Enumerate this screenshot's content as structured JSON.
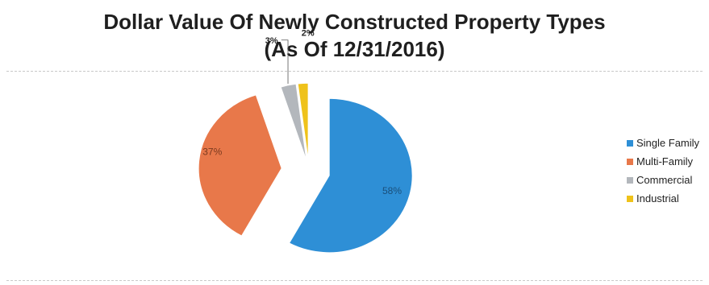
{
  "chart_data": {
    "type": "pie",
    "title": "Dollar Value Of Newly Constructed Property Types",
    "subtitle": "(As Of 12/31/2016)",
    "slices": [
      {
        "label": "Single Family",
        "value": 58,
        "value_label": "58%",
        "color": "#2e8fd6"
      },
      {
        "label": "Multi-Family",
        "value": 37,
        "value_label": "37%",
        "color": "#e8784a"
      },
      {
        "label": "Commercial",
        "value": 3,
        "value_label": "3%",
        "color": "#b3b7bc"
      },
      {
        "label": "Industrial",
        "value": 2,
        "value_label": "2%",
        "color": "#efc21a"
      }
    ],
    "legend_position": "right",
    "exploded": true
  }
}
